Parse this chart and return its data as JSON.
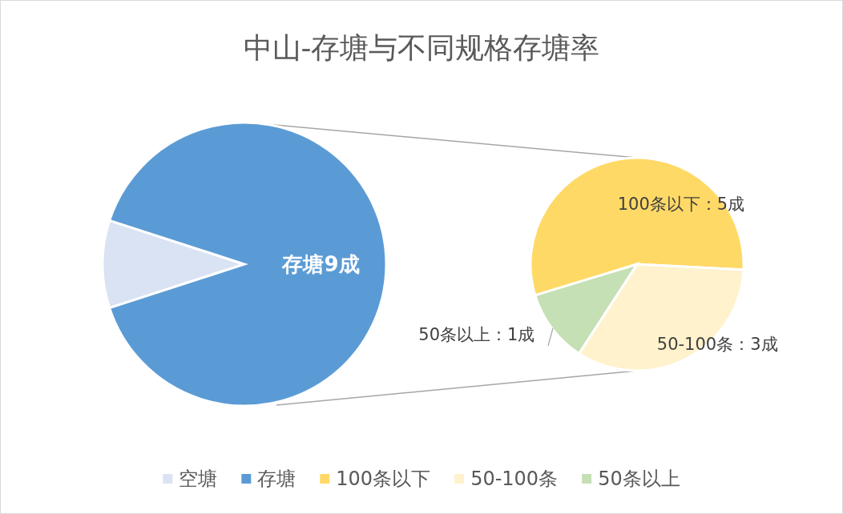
{
  "chart_data": [
    {
      "type": "pie",
      "title": "中山-存塘与不同规格存塘率",
      "categories": [
        "空塘",
        "存塘"
      ],
      "values": [
        10,
        90
      ],
      "colors": [
        "#dae3f3",
        "#5b9bd5"
      ],
      "value_labels": [
        null,
        "存塘9成"
      ],
      "legend": "bottom"
    },
    {
      "type": "pie",
      "categories": [
        "100条以下",
        "50-100条",
        "50条以上"
      ],
      "values": [
        5,
        3,
        1
      ],
      "colors": [
        "#ffd966",
        "#fff2cc",
        "#c5e0b4"
      ],
      "value_labels": [
        "100条以下：5成",
        "50-100条：3成",
        "50条以上：1成"
      ],
      "legend": "bottom"
    }
  ]
}
